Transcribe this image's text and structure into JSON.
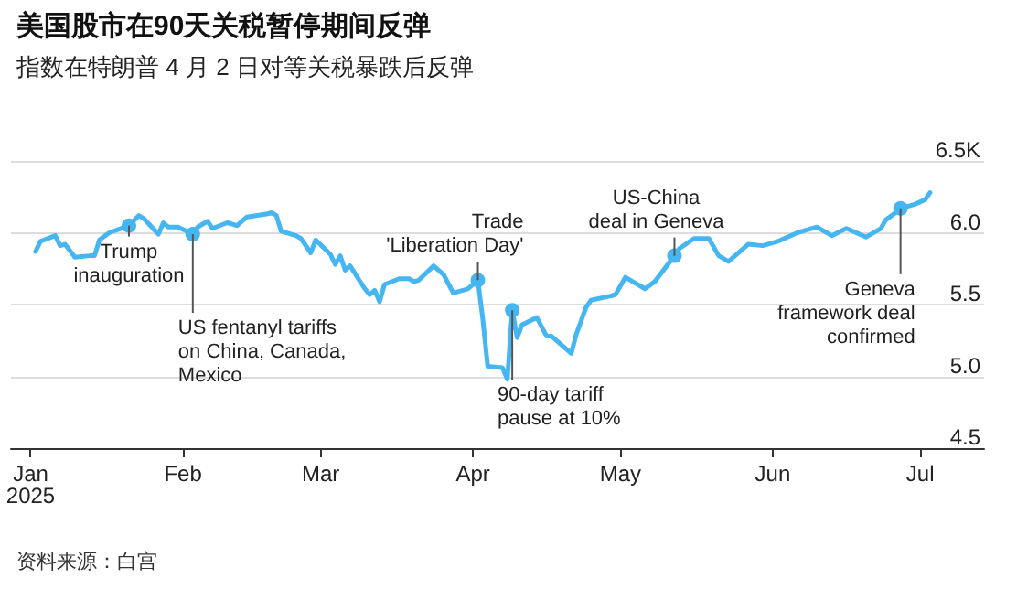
{
  "chart_data": {
    "type": "line",
    "title": "美国股市在90天关税暂停期间反弹",
    "subtitle": "指数在特朗普 4 月 2 日对等关税暴跌后反弹",
    "x": [
      "2025-01-02",
      "2025-01-03",
      "2025-01-06",
      "2025-01-07",
      "2025-01-08",
      "2025-01-10",
      "2025-01-13",
      "2025-01-14",
      "2025-01-15",
      "2025-01-17",
      "2025-01-21",
      "2025-01-23",
      "2025-01-24",
      "2025-01-27",
      "2025-01-28",
      "2025-01-29",
      "2025-01-31",
      "2025-02-03",
      "2025-02-04",
      "2025-02-06",
      "2025-02-07",
      "2025-02-10",
      "2025-02-12",
      "2025-02-14",
      "2025-02-18",
      "2025-02-19",
      "2025-02-20",
      "2025-02-21",
      "2025-02-24",
      "2025-02-25",
      "2025-02-27",
      "2025-02-28",
      "2025-03-03",
      "2025-03-04",
      "2025-03-05",
      "2025-03-06",
      "2025-03-07",
      "2025-03-10",
      "2025-03-11",
      "2025-03-12",
      "2025-03-13",
      "2025-03-14",
      "2025-03-17",
      "2025-03-19",
      "2025-03-20",
      "2025-03-21",
      "2025-03-24",
      "2025-03-26",
      "2025-03-28",
      "2025-03-31",
      "2025-04-02",
      "2025-04-03",
      "2025-04-04",
      "2025-04-07",
      "2025-04-08",
      "2025-04-09",
      "2025-04-10",
      "2025-04-11",
      "2025-04-14",
      "2025-04-16",
      "2025-04-17",
      "2025-04-21",
      "2025-04-22",
      "2025-04-24",
      "2025-04-25",
      "2025-04-29",
      "2025-04-30",
      "2025-05-02",
      "2025-05-06",
      "2025-05-08",
      "2025-05-12",
      "2025-05-13",
      "2025-05-16",
      "2025-05-19",
      "2025-05-21",
      "2025-05-23",
      "2025-05-27",
      "2025-05-30",
      "2025-06-02",
      "2025-06-06",
      "2025-06-10",
      "2025-06-11",
      "2025-06-13",
      "2025-06-16",
      "2025-06-20",
      "2025-06-23",
      "2025-06-24",
      "2025-06-26",
      "2025-06-27",
      "2025-06-30",
      "2025-07-02",
      "2025-07-03"
    ],
    "series": [
      {
        "color": "#45b6f2",
        "values": [
          5.87,
          5.94,
          5.98,
          5.91,
          5.92,
          5.83,
          5.84,
          5.84,
          5.95,
          6.0,
          6.05,
          6.12,
          6.1,
          5.99,
          6.07,
          6.04,
          6.04,
          5.99,
          6.04,
          6.08,
          6.03,
          6.07,
          6.05,
          6.11,
          6.13,
          6.14,
          6.12,
          6.01,
          5.98,
          5.96,
          5.86,
          5.95,
          5.85,
          5.78,
          5.84,
          5.74,
          5.77,
          5.61,
          5.57,
          5.6,
          5.52,
          5.64,
          5.68,
          5.68,
          5.66,
          5.67,
          5.77,
          5.71,
          5.58,
          5.61,
          5.67,
          5.4,
          5.07,
          5.06,
          4.98,
          5.46,
          5.27,
          5.36,
          5.41,
          5.28,
          5.28,
          5.16,
          5.29,
          5.48,
          5.53,
          5.56,
          5.57,
          5.69,
          5.61,
          5.66,
          5.84,
          5.89,
          5.96,
          5.96,
          5.84,
          5.8,
          5.92,
          5.91,
          5.94,
          6.0,
          6.04,
          6.02,
          5.98,
          6.03,
          5.97,
          6.03,
          6.09,
          6.14,
          6.17,
          6.2,
          6.23,
          6.28
        ]
      }
    ],
    "xlim": [
      "2024-12-28",
      "2025-07-14"
    ],
    "xticks": [
      {
        "value": "2025-01-01",
        "label": "Jan\n2025"
      },
      {
        "value": "2025-02-01",
        "label": "Feb"
      },
      {
        "value": "2025-03-01",
        "label": "Mar"
      },
      {
        "value": "2025-04-01",
        "label": "Apr"
      },
      {
        "value": "2025-05-01",
        "label": "May"
      },
      {
        "value": "2025-06-01",
        "label": "Jun"
      },
      {
        "value": "2025-07-01",
        "label": "Jul"
      }
    ],
    "ylim": [
      4.5,
      6.5
    ],
    "yticks": [
      {
        "value": 4.5,
        "label": "4.5"
      },
      {
        "value": 5.0,
        "label": "5.0"
      },
      {
        "value": 5.5,
        "label": "5.5"
      },
      {
        "value": 6.0,
        "label": "6.0"
      },
      {
        "value": 6.5,
        "label": "6.5K"
      }
    ],
    "grid": "y",
    "marker": "none",
    "line_style": "solid",
    "annotations": [
      {
        "text": "Trump\ninauguration",
        "x": "2025-01-21",
        "y": 6.05
      },
      {
        "text": "US fentanyl tariffs\non China, Canada,\nMexico",
        "x": "2025-02-03",
        "y": 5.99
      },
      {
        "text": "Trade\n'Liberation Day'",
        "x": "2025-04-02",
        "y": 5.67
      },
      {
        "text": "90-day tariff\npause at 10%",
        "x": "2025-04-09",
        "y": 5.46
      },
      {
        "text": "US-China\ndeal in Geneva",
        "x": "2025-05-12",
        "y": 5.84
      },
      {
        "text": "Geneva\nframework deal\nconfirmed",
        "x": "2025-06-27",
        "y": 6.17
      },
      "资料来源：白宫"
    ]
  }
}
